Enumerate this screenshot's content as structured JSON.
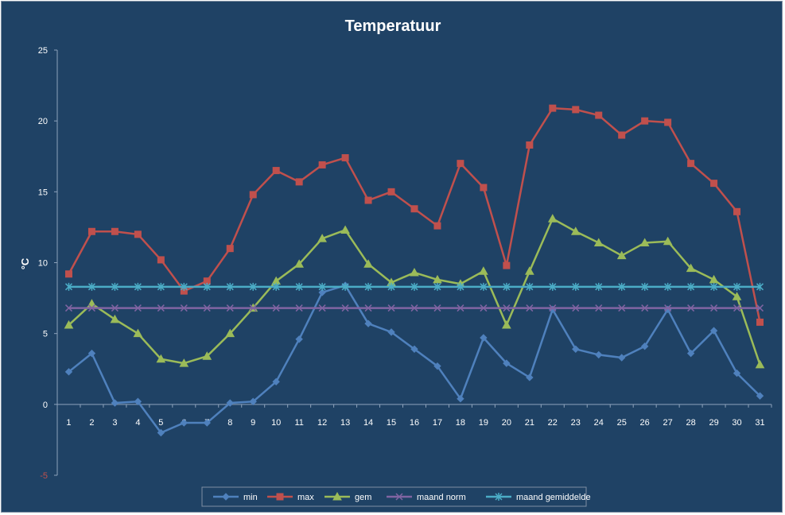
{
  "chart_data": {
    "type": "line",
    "title": "Temperatuur",
    "xlabel": "",
    "ylabel": "°C",
    "ylim": [
      -5,
      25
    ],
    "yticks": [
      25,
      20,
      15,
      10,
      5,
      0,
      -5
    ],
    "ytick_labels": [
      "25",
      "20",
      "15",
      "10",
      "5",
      "0",
      "-5"
    ],
    "categories": [
      "1",
      "2",
      "3",
      "4",
      "5",
      "6",
      "7",
      "8",
      "9",
      "10",
      "11",
      "12",
      "13",
      "14",
      "15",
      "16",
      "17",
      "18",
      "19",
      "20",
      "21",
      "22",
      "23",
      "24",
      "25",
      "26",
      "27",
      "28",
      "29",
      "30",
      "31"
    ],
    "grid": false,
    "legend_position": "bottom",
    "series": [
      {
        "name": "min",
        "color": "#4f81bd",
        "marker": "diamond",
        "values": [
          2.3,
          3.6,
          0.1,
          0.2,
          -2.0,
          -1.3,
          -1.3,
          0.1,
          0.2,
          1.6,
          4.6,
          7.9,
          8.4,
          5.7,
          5.1,
          3.9,
          2.7,
          0.4,
          4.7,
          2.9,
          1.9,
          6.7,
          3.9,
          3.5,
          3.3,
          4.1,
          6.7,
          3.6,
          5.2,
          2.2,
          0.6
        ]
      },
      {
        "name": "max",
        "color": "#c0504d",
        "marker": "square",
        "values": [
          9.2,
          12.2,
          12.2,
          12.0,
          10.2,
          8.0,
          8.7,
          11.0,
          14.8,
          16.5,
          15.7,
          16.9,
          17.4,
          14.4,
          15.0,
          13.8,
          12.6,
          17.0,
          15.3,
          9.8,
          18.3,
          20.9,
          20.8,
          20.4,
          19.0,
          20.0,
          19.9,
          17.0,
          15.6,
          13.6,
          5.8
        ]
      },
      {
        "name": "gem",
        "color": "#9bbb59",
        "marker": "triangle",
        "values": [
          5.6,
          7.1,
          6.0,
          5.0,
          3.2,
          2.9,
          3.4,
          5.0,
          6.8,
          8.7,
          9.9,
          11.7,
          12.3,
          9.9,
          8.6,
          9.3,
          8.8,
          8.5,
          9.4,
          5.6,
          9.4,
          13.1,
          12.2,
          11.4,
          10.5,
          11.4,
          11.5,
          9.6,
          8.8,
          7.6,
          2.8
        ]
      },
      {
        "name": "maand norm",
        "color": "#8064a2",
        "marker": "x",
        "values": [
          6.8,
          6.8,
          6.8,
          6.8,
          6.8,
          6.8,
          6.8,
          6.8,
          6.8,
          6.8,
          6.8,
          6.8,
          6.8,
          6.8,
          6.8,
          6.8,
          6.8,
          6.8,
          6.8,
          6.8,
          6.8,
          6.8,
          6.8,
          6.8,
          6.8,
          6.8,
          6.8,
          6.8,
          6.8,
          6.8,
          6.8
        ]
      },
      {
        "name": "maand gemiddelde",
        "color": "#4bacc6",
        "marker": "star",
        "values": [
          8.3,
          8.3,
          8.3,
          8.3,
          8.3,
          8.3,
          8.3,
          8.3,
          8.3,
          8.3,
          8.3,
          8.3,
          8.3,
          8.3,
          8.3,
          8.3,
          8.3,
          8.3,
          8.3,
          8.3,
          8.3,
          8.3,
          8.3,
          8.3,
          8.3,
          8.3,
          8.3,
          8.3,
          8.3,
          8.3,
          8.3
        ]
      }
    ]
  }
}
